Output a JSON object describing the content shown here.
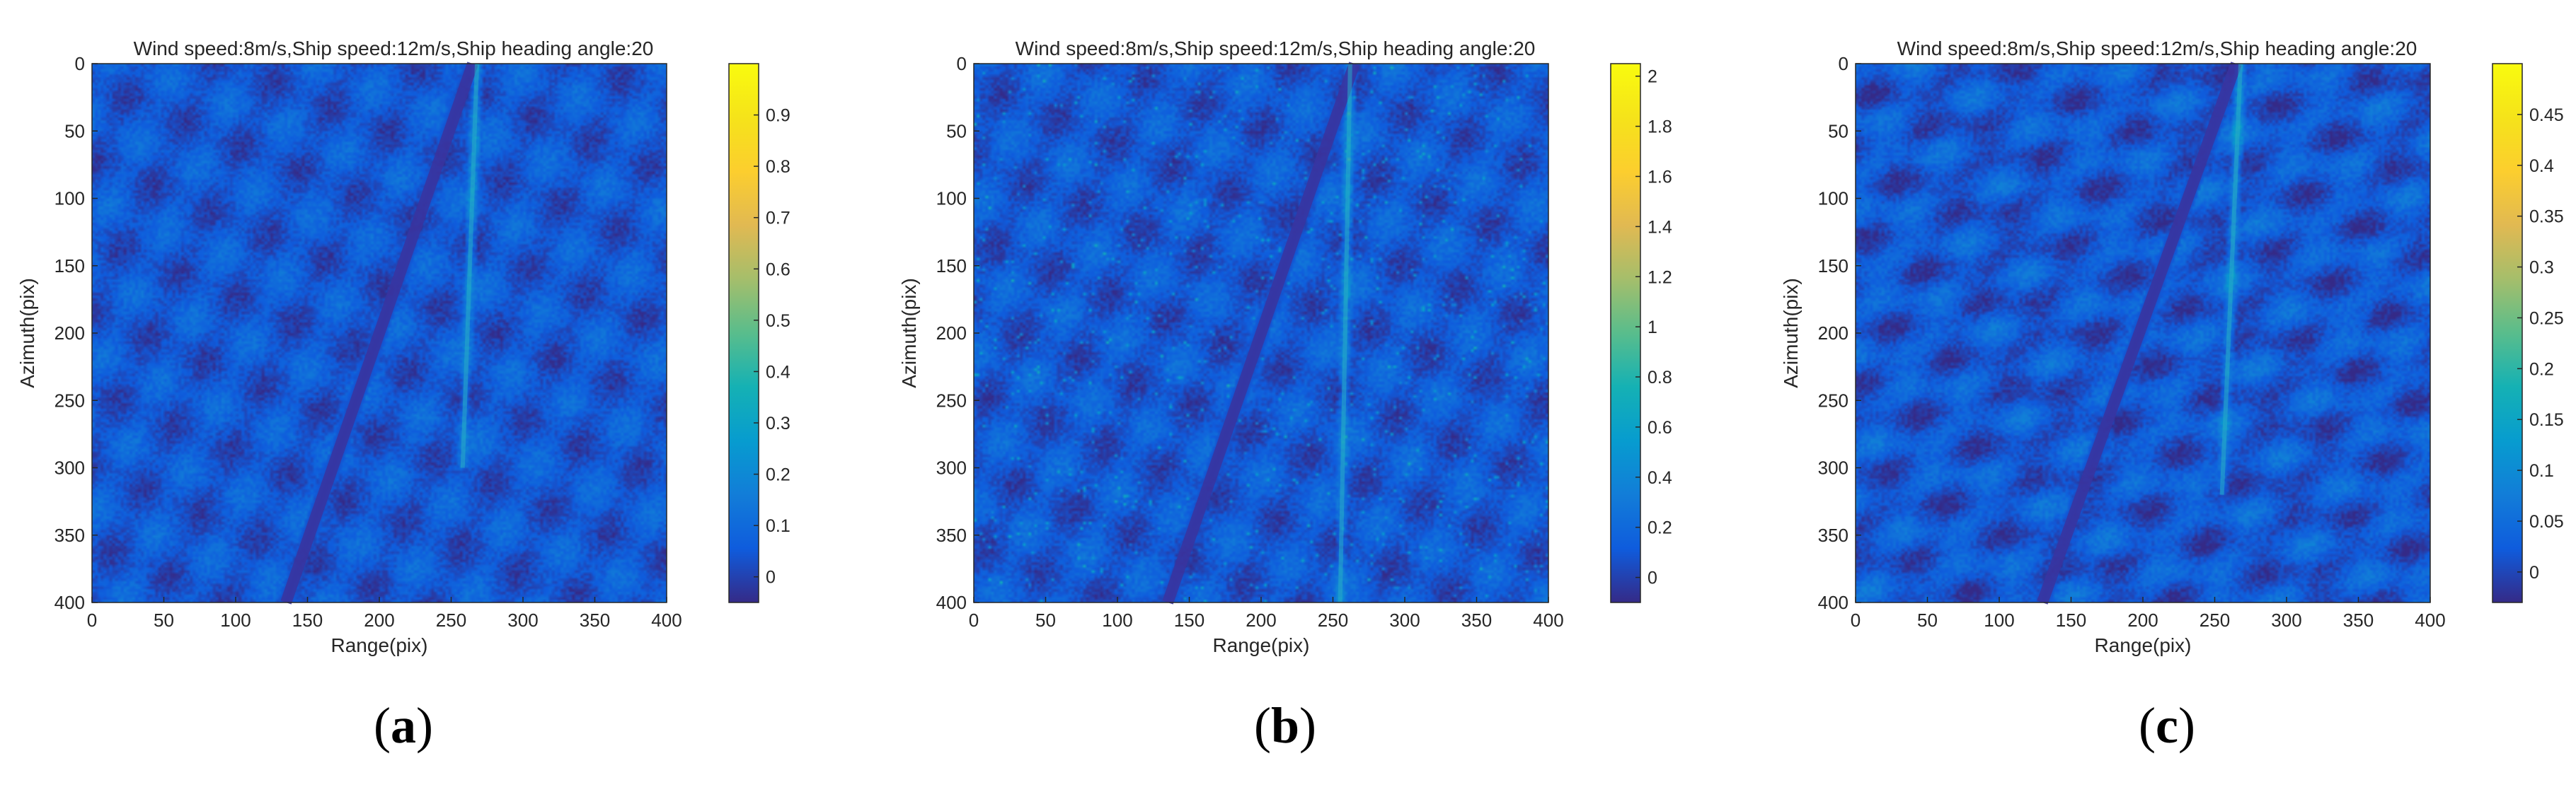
{
  "chart_data": [
    {
      "type": "heatmap",
      "title": "Wind speed:8m/s,Ship speed:12m/s,Ship heading angle:20",
      "xlabel": "Range(pix)",
      "ylabel": "Azimuth(pix)",
      "xlim": [
        0,
        400
      ],
      "ylim": [
        0,
        400
      ],
      "x_ticks": [
        "0",
        "50",
        "100",
        "150",
        "200",
        "250",
        "300",
        "350",
        "400"
      ],
      "y_ticks": [
        "0",
        "50",
        "100",
        "150",
        "200",
        "250",
        "300",
        "350",
        "400"
      ],
      "y_direction": "down",
      "colormap": "parula",
      "colorbar": {
        "min": -0.05,
        "max": 1.0,
        "ticks": [
          "0",
          "0.1",
          "0.2",
          "0.3",
          "0.4",
          "0.5",
          "0.6",
          "0.7",
          "0.8",
          "0.9"
        ],
        "tick_values": [
          0,
          0.1,
          0.2,
          0.3,
          0.4,
          0.5,
          0.6,
          0.7,
          0.8,
          0.9
        ]
      },
      "features": {
        "dark_wake_line": {
          "from_range": 265,
          "from_azimuth": 0,
          "to_range": 135,
          "to_azimuth": 400
        },
        "bright_wake_line": {
          "from_range": 268,
          "from_azimuth": 0,
          "to_range": 258,
          "to_azimuth": 300
        }
      },
      "caption": "a"
    },
    {
      "type": "heatmap",
      "title": "Wind speed:8m/s,Ship speed:12m/s,Ship heading angle:20",
      "xlabel": "Range(pix)",
      "ylabel": "Azimuth(pix)",
      "xlim": [
        0,
        400
      ],
      "ylim": [
        0,
        400
      ],
      "x_ticks": [
        "0",
        "50",
        "100",
        "150",
        "200",
        "250",
        "300",
        "350",
        "400"
      ],
      "y_ticks": [
        "0",
        "50",
        "100",
        "150",
        "200",
        "250",
        "300",
        "350",
        "400"
      ],
      "y_direction": "down",
      "colormap": "parula",
      "colorbar": {
        "min": -0.1,
        "max": 2.05,
        "ticks": [
          "0",
          "0.2",
          "0.4",
          "0.6",
          "0.8",
          "1",
          "1.2",
          "1.4",
          "1.6",
          "1.8",
          "2"
        ],
        "tick_values": [
          0,
          0.2,
          0.4,
          0.6,
          0.8,
          1,
          1.2,
          1.4,
          1.6,
          1.8,
          2
        ]
      },
      "features": {
        "dark_wake_line": {
          "from_range": 265,
          "from_azimuth": 0,
          "to_range": 135,
          "to_azimuth": 400
        },
        "bright_wake_line": {
          "from_range": 262,
          "from_azimuth": 0,
          "to_range": 255,
          "to_azimuth": 400
        }
      },
      "caption": "b"
    },
    {
      "type": "heatmap",
      "title": "Wind speed:8m/s,Ship speed:12m/s,Ship heading angle:20",
      "xlabel": "Range(pix)",
      "ylabel": "Azimuth(pix)",
      "xlim": [
        0,
        400
      ],
      "ylim": [
        0,
        400
      ],
      "x_ticks": [
        "0",
        "50",
        "100",
        "150",
        "200",
        "250",
        "300",
        "350",
        "400"
      ],
      "y_ticks": [
        "0",
        "50",
        "100",
        "150",
        "200",
        "250",
        "300",
        "350",
        "400"
      ],
      "y_direction": "down",
      "colormap": "parula",
      "colorbar": {
        "min": -0.03,
        "max": 0.5,
        "ticks": [
          "0",
          "0.05",
          "0.1",
          "0.15",
          "0.2",
          "0.25",
          "0.3",
          "0.35",
          "0.4",
          "0.45"
        ],
        "tick_values": [
          0,
          0.05,
          0.1,
          0.15,
          0.2,
          0.25,
          0.3,
          0.35,
          0.4,
          0.45
        ]
      },
      "features": {
        "dark_wake_line": {
          "from_range": 265,
          "from_azimuth": 0,
          "to_range": 130,
          "to_azimuth": 400
        },
        "bright_wake_line": {
          "from_range": 268,
          "from_azimuth": 0,
          "to_range": 255,
          "to_azimuth": 320
        }
      },
      "caption": "c"
    }
  ]
}
